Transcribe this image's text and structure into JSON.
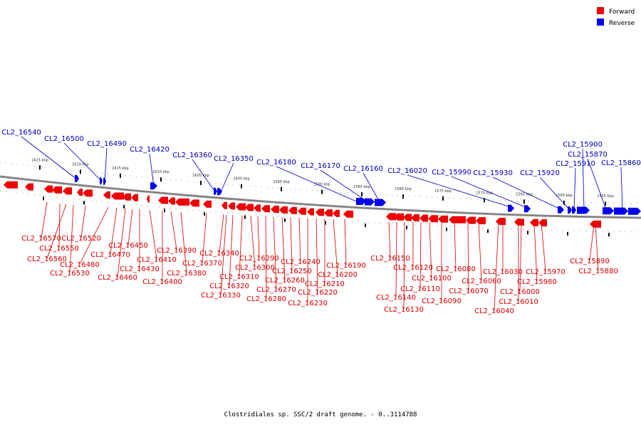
{
  "legend": {
    "forward_label": "Forward",
    "reverse_label": "Reverse",
    "forward_color": "#ee0000",
    "reverse_color": "#0000ee"
  },
  "caption": "Clostridiales sp. SSC/2 draft genome. - 0..3114788",
  "scale_labels": [
    "1625 kbp",
    "1620 kbp",
    "1615 kbp",
    "1610 kbp",
    "1605 kbp",
    "1600 kbp",
    "1595 kbp",
    "1590 kbp",
    "1585 kbp",
    "1580 kbp",
    "1575 kbp",
    "1570 kbp",
    "1565 kbp",
    "1560 kbp",
    "1555 kbp"
  ],
  "reverse_gene_labels": [
    "CL2_16540",
    "CL2_16500",
    "CL2_16490",
    "CL2_16420",
    "CL2_16360",
    "CL2_16350",
    "CL2_16180",
    "CL2_16170",
    "CL2_16160",
    "CL2_16020",
    "CL2_15990",
    "CL2_15930",
    "CL2_15920",
    "CL2_15910",
    "CL2_15900",
    "CL2_15870",
    "CL2_15860"
  ],
  "forward_gene_labels": [
    "CL2_16570",
    "CL2_16550",
    "CL2_16560",
    "CL2_16530",
    "CL2_16520",
    "CL2_16480",
    "CL2_16470",
    "CL2_16460",
    "CL2_16450",
    "CL2_16430",
    "CL2_16410",
    "CL2_16400",
    "CL2_16390",
    "CL2_16380",
    "CL2_16370",
    "CL2_16340",
    "CL2_16330",
    "CL2_16320",
    "CL2_16310",
    "CL2_16300",
    "CL2_16290",
    "CL2_16280",
    "CL2_16270",
    "CL2_16260",
    "CL2_16250",
    "CL2_16240",
    "CL2_16230",
    "CL2_16220",
    "CL2_16210",
    "CL2_16200",
    "CL2_16190",
    "CL2_16150",
    "CL2_16140",
    "CL2_16130",
    "CL2_16120",
    "CL2_16110",
    "CL2_16100",
    "CL2_16090",
    "CL2_16080",
    "CL2_16070",
    "CL2_16060",
    "CL2_16040",
    "CL2_16030",
    "CL2_16010",
    "CL2_16000",
    "CL2_15980",
    "CL2_15970",
    "CL2_15890",
    "CL2_15880"
  ]
}
